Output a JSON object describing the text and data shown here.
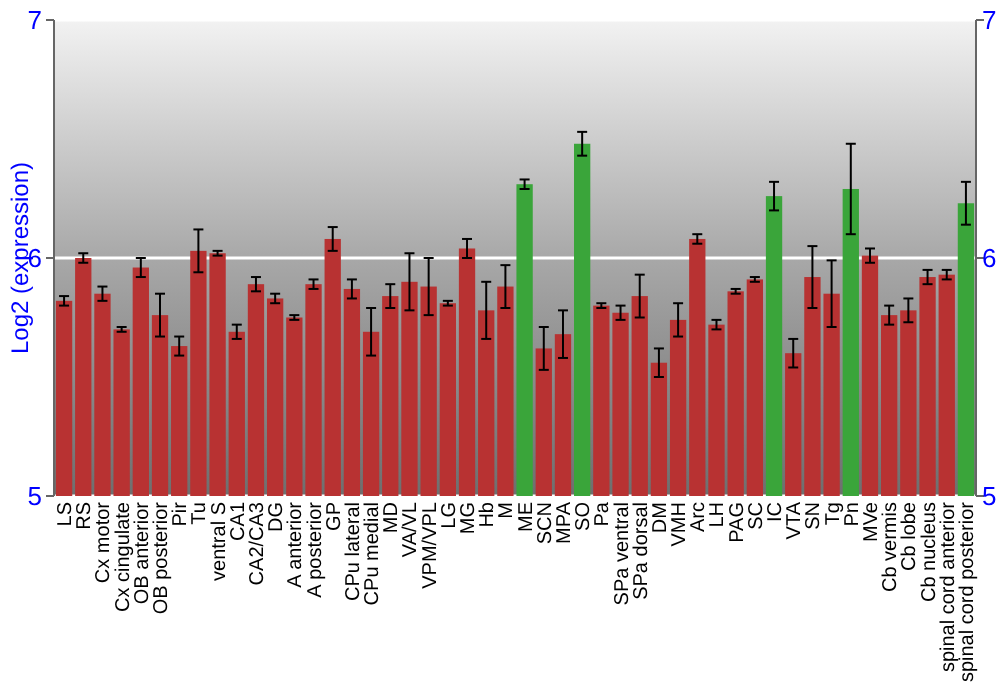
{
  "chart_data": {
    "type": "bar",
    "ylabel": "Log2 (expression)",
    "categories": [
      "LS",
      "RS",
      "Cx motor",
      "Cx cingulate",
      "OB anterior",
      "OB posterior",
      "Pir",
      "Tu",
      "ventral S",
      "CA1",
      "CA2/CA3",
      "DG",
      "A anterior",
      "A posterior",
      "GP",
      "CPu lateral",
      "CPu medial",
      "MD",
      "VA/VL",
      "VPM/VPL",
      "LG",
      "MG",
      "Hb",
      "M",
      "ME",
      "SCN",
      "MPA",
      "SO",
      "Pa",
      "SPa ventral",
      "SPa dorsal",
      "DM",
      "VMH",
      "Arc",
      "LH",
      "PAG",
      "SC",
      "IC",
      "VTA",
      "SN",
      "Tg",
      "Pn",
      "MVe",
      "Cb vermis",
      "Cb lobe",
      "Cb nucleus",
      "spinal cord anterior",
      "spinal cord posterior"
    ],
    "values": [
      5.82,
      6.0,
      5.85,
      5.7,
      5.96,
      5.76,
      5.63,
      6.03,
      6.02,
      5.69,
      5.89,
      5.83,
      5.75,
      5.89,
      6.08,
      5.87,
      5.69,
      5.84,
      5.9,
      5.88,
      5.81,
      6.04,
      5.78,
      5.88,
      6.31,
      5.62,
      5.68,
      6.48,
      5.8,
      5.77,
      5.84,
      5.56,
      5.74,
      6.08,
      5.72,
      5.86,
      5.91,
      6.26,
      5.6,
      5.92,
      5.85,
      6.29,
      6.01,
      5.76,
      5.78,
      5.92,
      5.93,
      6.23
    ],
    "errors": [
      0.02,
      0.02,
      0.03,
      0.01,
      0.04,
      0.09,
      0.04,
      0.09,
      0.01,
      0.03,
      0.03,
      0.02,
      0.01,
      0.02,
      0.05,
      0.04,
      0.1,
      0.05,
      0.12,
      0.12,
      0.01,
      0.04,
      0.12,
      0.09,
      0.02,
      0.09,
      0.1,
      0.05,
      0.01,
      0.03,
      0.09,
      0.06,
      0.07,
      0.02,
      0.02,
      0.01,
      0.01,
      0.06,
      0.06,
      0.13,
      0.14,
      0.19,
      0.03,
      0.04,
      0.05,
      0.03,
      0.02,
      0.09
    ],
    "colors": [
      "#b83232",
      "#b83232",
      "#b83232",
      "#b83232",
      "#b83232",
      "#b83232",
      "#b83232",
      "#b83232",
      "#b83232",
      "#b83232",
      "#b83232",
      "#b83232",
      "#b83232",
      "#b83232",
      "#b83232",
      "#b83232",
      "#b83232",
      "#b83232",
      "#b83232",
      "#b83232",
      "#b83232",
      "#b83232",
      "#b83232",
      "#b83232",
      "#3aa53a",
      "#b83232",
      "#b83232",
      "#3aa53a",
      "#b83232",
      "#b83232",
      "#b83232",
      "#b83232",
      "#b83232",
      "#b83232",
      "#b83232",
      "#b83232",
      "#b83232",
      "#3aa53a",
      "#b83232",
      "#b83232",
      "#b83232",
      "#3aa53a",
      "#b83232",
      "#b83232",
      "#b83232",
      "#b83232",
      "#b83232",
      "#3aa53a"
    ],
    "ylim": [
      5,
      7
    ],
    "yticks": [
      5,
      6,
      7
    ],
    "y2lim": [
      5,
      7
    ],
    "y2ticks": [
      5,
      6,
      7
    ],
    "grid": "y"
  }
}
